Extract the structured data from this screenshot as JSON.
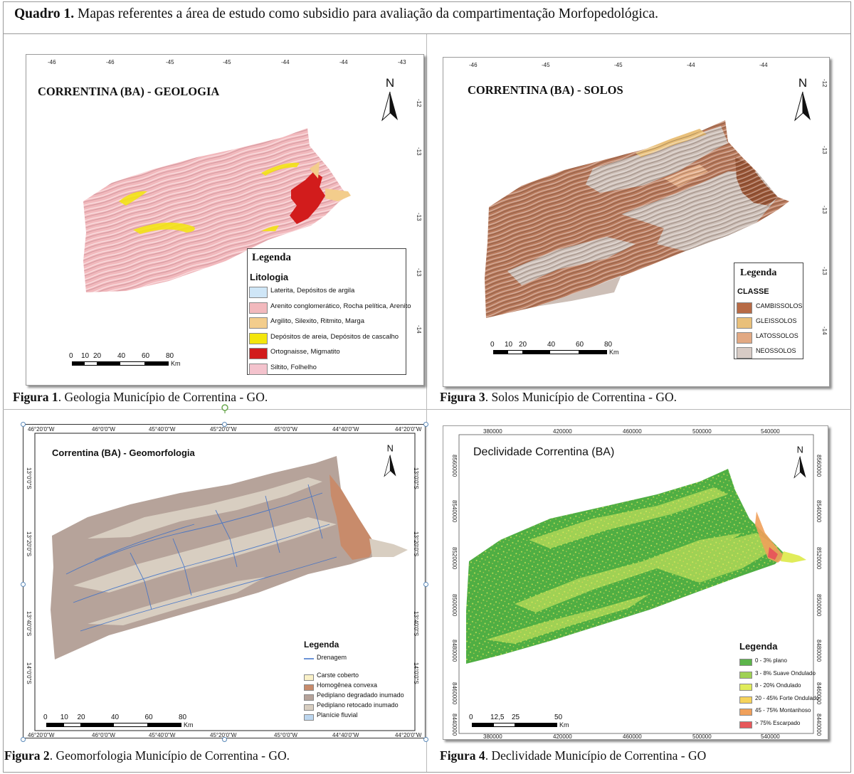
{
  "header": {
    "prefix": "Quadro 1.",
    "text": " Mapas referentes a área de estudo como subsidio para avaliação da compartimentação Morfopedológica."
  },
  "captions": {
    "fig1": {
      "prefix": "Figura 1",
      "text": ". Geologia Município de Correntina - GO."
    },
    "fig2": {
      "prefix": "Figura 2",
      "text": ". Geomorfologia Município de Correntina - GO."
    },
    "fig3": {
      "prefix": "Figura 3",
      "text": ". Solos Município de Correntina -  GO."
    },
    "fig4": {
      "prefix": "Figura 4",
      "text": ". Declividade Município de Correntina - GO"
    }
  },
  "maps": {
    "geologia": {
      "title": "CORRENTINA (BA) - GEOLOGIA",
      "top_ticks": [
        "-46",
        "-46",
        "-45",
        "-45",
        "-44",
        "-44",
        "-43"
      ],
      "right_ticks": [
        "-12",
        "-13",
        "-13",
        "-13",
        "-14"
      ],
      "north": "N",
      "legend": {
        "title": "Legenda",
        "subtitle": "Litologia",
        "items": [
          {
            "label": "Laterita, Depósitos de argila",
            "color": "#cfe6f7"
          },
          {
            "label": "Arenito conglomerático, Rocha pelítica, Arenito",
            "color": "#f2b9bd"
          },
          {
            "label": "Argilito, Silexito, Ritmito, Marga",
            "color": "#f3cd8c"
          },
          {
            "label": "Depósitos de areia, Depósitos de cascalho",
            "color": "#f3e60c"
          },
          {
            "label": "Ortognaisse, Migmatito",
            "color": "#d21c1c"
          },
          {
            "label": "Siltito, Folhelho",
            "color": "#f4c3cd"
          }
        ]
      },
      "scale": {
        "labels": [
          "0",
          "10",
          "20",
          "40",
          "60",
          "80"
        ],
        "unit": "Km"
      }
    },
    "solos": {
      "title": "CORRENTINA (BA) - SOLOS",
      "top_ticks": [
        "-46",
        "-45",
        "-45",
        "-44",
        "-44"
      ],
      "right_ticks": [
        "-12",
        "-13",
        "-13",
        "-13",
        "-14"
      ],
      "north": "N",
      "legend": {
        "title": "Legenda",
        "subtitle": "CLASSE",
        "items": [
          {
            "label": "CAMBISSOLOS",
            "color": "#b76a45"
          },
          {
            "label": "GLEISSOLOS",
            "color": "#e9c07a"
          },
          {
            "label": "LATOSSOLOS",
            "color": "#e2a983"
          },
          {
            "label": "NEOSSOLOS",
            "color": "#d7cbc5"
          }
        ]
      },
      "scale": {
        "labels": [
          "0",
          "10",
          "20",
          "40",
          "60",
          "80"
        ],
        "unit": "Km"
      }
    },
    "geomorfologia": {
      "title": "Correntina  (BA) - Geomorfologia",
      "top_ticks": [
        "46°20'0\"W",
        "46°0'0\"W",
        "45°40'0\"W",
        "45°20'0\"W",
        "45°0'0\"W",
        "44°40'0\"W",
        "44°20'0\"W"
      ],
      "bottom_ticks": [
        "46°20'0\"W",
        "46°0'0\"W",
        "45°40'0\"W",
        "45°20'0\"W",
        "45°0'0\"W",
        "44°40'0\"W",
        "44°20'0\"W"
      ],
      "left_ticks": [
        "13°0'0\"S",
        "13°20'0\"S",
        "13°40'0\"S",
        "14°0'0\"S"
      ],
      "right_ticks": [
        "13°0'0\"S",
        "13°20'0\"S",
        "13°40'0\"S",
        "14°0'0\"S"
      ],
      "north": "N",
      "legend": {
        "title": "Legenda",
        "line_label": "Drenagem",
        "line_color": "#3a6fc9",
        "items": [
          {
            "label": "Carste coberto",
            "color": "#faf1c8"
          },
          {
            "label": "Homogênea convexa",
            "color": "#c88b6b"
          },
          {
            "label": "Pediplano degradado inumado",
            "color": "#b6a39a"
          },
          {
            "label": "Pediplano retocado inumado",
            "color": "#d8cec1"
          },
          {
            "label": "Planície fluvial",
            "color": "#bcd6ef"
          }
        ]
      },
      "scale": {
        "labels": [
          "0",
          "10",
          "20",
          "40",
          "60",
          "80"
        ],
        "unit": "Km"
      }
    },
    "declividade": {
      "title": "Declividade Correntina (BA)",
      "top_ticks": [
        "380000",
        "420000",
        "460000",
        "500000",
        "540000"
      ],
      "bottom_ticks": [
        "380000",
        "420000",
        "460000",
        "500000",
        "540000"
      ],
      "left_ticks": [
        "8560000",
        "8540000",
        "8520000",
        "8500000",
        "8480000",
        "8460000",
        "8440000"
      ],
      "right_ticks": [
        "8560000",
        "8540000",
        "8520000",
        "8500000",
        "8480000",
        "8460000",
        "8440000"
      ],
      "north": "N",
      "legend": {
        "title": "Legenda",
        "items": [
          {
            "label": "0 - 3%  plano",
            "color": "#5cb54a"
          },
          {
            "label": "3 - 8% Suave Ondulado",
            "color": "#9fd154"
          },
          {
            "label": "8 - 20% Ondulado",
            "color": "#e0ec5a"
          },
          {
            "label": "20 - 45% Forte Ondulado",
            "color": "#f6d35b"
          },
          {
            "label": "45 - 75% Montanhoso",
            "color": "#f0a05a"
          },
          {
            "label": "> 75% Escarpado",
            "color": "#e7585a"
          }
        ]
      },
      "scale": {
        "labels": [
          "0",
          "12,5",
          "25",
          "50"
        ],
        "unit": "Km"
      }
    }
  }
}
